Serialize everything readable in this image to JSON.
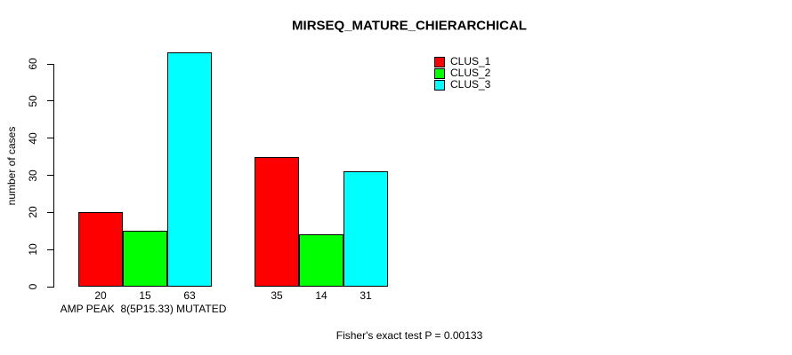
{
  "title": "MIRSEQ_MATURE_CHIERARCHICAL",
  "ylabel": "number of cases",
  "group_axis_label": "AMP PEAK  8(5P15.33) MUTATED",
  "footer": "Fisher's exact test P = 0.00133",
  "legend": {
    "items": [
      {
        "label": "CLUS_1",
        "color": "#FF0000"
      },
      {
        "label": "CLUS_2",
        "color": "#00FF00"
      },
      {
        "label": "CLUS_3",
        "color": "#00FFFF"
      }
    ]
  },
  "chart_data": {
    "type": "bar",
    "title": "MIRSEQ_MATURE_CHIERARCHICAL",
    "xlabel": "AMP PEAK  8(5P15.33) MUTATED",
    "ylabel": "number of cases",
    "categories": [
      "AMP PEAK  8(5P15.33) MUTATED",
      ""
    ],
    "series": [
      {
        "name": "CLUS_1",
        "color": "#FF0000",
        "values": [
          20,
          35
        ]
      },
      {
        "name": "CLUS_2",
        "color": "#00FF00",
        "values": [
          15,
          14
        ]
      },
      {
        "name": "CLUS_3",
        "color": "#00FFFF",
        "values": [
          63,
          31
        ]
      }
    ],
    "groups": [
      {
        "bar_labels": [
          "20",
          "15",
          "63"
        ]
      },
      {
        "bar_labels": [
          "35",
          "14",
          "31"
        ]
      }
    ],
    "ylim": [
      0,
      63
    ],
    "yticks": [
      0,
      10,
      20,
      30,
      40,
      50,
      60
    ],
    "grid": false,
    "legend_position": "top-right",
    "bar_border_color": "#000000",
    "annotation": "Fisher's exact test P = 0.00133"
  }
}
